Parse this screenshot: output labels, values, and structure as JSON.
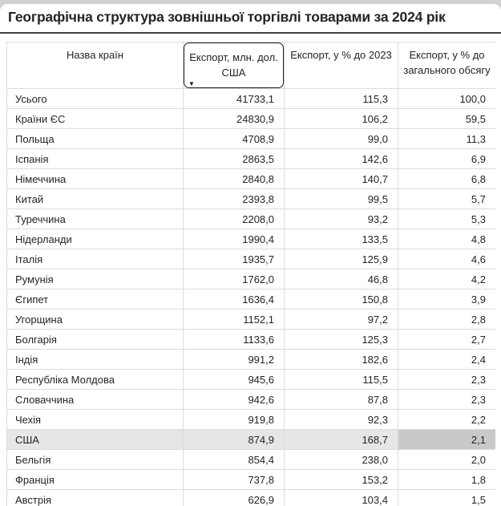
{
  "page": {
    "title": "Географічна структура зовнішньої торгівлі товарами за 2024 рік"
  },
  "table": {
    "columns": [
      {
        "label": "Назва країн"
      },
      {
        "label": "Експорт, млн. дол.\nСША",
        "sorted": "descending"
      },
      {
        "label": "Експорт, у % до 2023"
      },
      {
        "label": "Експорт, у % до\nзагального обсягу"
      }
    ],
    "rows": [
      {
        "name": "Усього",
        "export_mln_usd": "41733,1",
        "pct_to_2023": "115,3",
        "pct_of_total": "100,0"
      },
      {
        "name": "Країни ЄС",
        "export_mln_usd": "24830,9",
        "pct_to_2023": "106,2",
        "pct_of_total": "59,5"
      },
      {
        "name": "Польща",
        "export_mln_usd": "4708,9",
        "pct_to_2023": "99,0",
        "pct_of_total": "11,3"
      },
      {
        "name": "Іспанія",
        "export_mln_usd": "2863,5",
        "pct_to_2023": "142,6",
        "pct_of_total": "6,9"
      },
      {
        "name": "Німеччина",
        "export_mln_usd": "2840,8",
        "pct_to_2023": "140,7",
        "pct_of_total": "6,8"
      },
      {
        "name": "Китай",
        "export_mln_usd": "2393,8",
        "pct_to_2023": "99,5",
        "pct_of_total": "5,7"
      },
      {
        "name": "Туреччина",
        "export_mln_usd": "2208,0",
        "pct_to_2023": "93,2",
        "pct_of_total": "5,3"
      },
      {
        "name": "Нідерланди",
        "export_mln_usd": "1990,4",
        "pct_to_2023": "133,5",
        "pct_of_total": "4,8"
      },
      {
        "name": "Італія",
        "export_mln_usd": "1935,7",
        "pct_to_2023": "125,9",
        "pct_of_total": "4,6"
      },
      {
        "name": "Румунія",
        "export_mln_usd": "1762,0",
        "pct_to_2023": "46,8",
        "pct_of_total": "4,2"
      },
      {
        "name": "Єгипет",
        "export_mln_usd": "1636,4",
        "pct_to_2023": "150,8",
        "pct_of_total": "3,9"
      },
      {
        "name": "Угорщина",
        "export_mln_usd": "1152,1",
        "pct_to_2023": "97,2",
        "pct_of_total": "2,8"
      },
      {
        "name": "Болгарія",
        "export_mln_usd": "1133,6",
        "pct_to_2023": "125,3",
        "pct_of_total": "2,7"
      },
      {
        "name": "Індія",
        "export_mln_usd": "991,2",
        "pct_to_2023": "182,6",
        "pct_of_total": "2,4"
      },
      {
        "name": "Республіка Молдова",
        "export_mln_usd": "945,6",
        "pct_to_2023": "115,5",
        "pct_of_total": "2,3"
      },
      {
        "name": "Словаччина",
        "export_mln_usd": "942,6",
        "pct_to_2023": "87,8",
        "pct_of_total": "2,3"
      },
      {
        "name": "Чехія",
        "export_mln_usd": "919,8",
        "pct_to_2023": "92,3",
        "pct_of_total": "2,2"
      },
      {
        "name": "США",
        "export_mln_usd": "874,9",
        "pct_to_2023": "168,7",
        "pct_of_total": "2,1"
      },
      {
        "name": "Бельгія",
        "export_mln_usd": "854,4",
        "pct_to_2023": "238,0",
        "pct_of_total": "2,0"
      },
      {
        "name": "Франція",
        "export_mln_usd": "737,8",
        "pct_to_2023": "153,2",
        "pct_of_total": "1,8"
      },
      {
        "name": "Австрія",
        "export_mln_usd": "626,9",
        "pct_to_2023": "103,4",
        "pct_of_total": "1,5"
      }
    ],
    "highlighted_row": "США"
  },
  "icons": {
    "sort_descending": "▼"
  },
  "colors": {
    "page_background": "#d2d2d2",
    "card_background": "#ffffff",
    "text": "#252423",
    "divider": "#3f3f3f",
    "table_border": "#dcdcdc",
    "highlight_row": "#e6e6e6",
    "highlight_last_cell": "#c9c9c9",
    "sort_box_border": "#1a1a1a"
  }
}
